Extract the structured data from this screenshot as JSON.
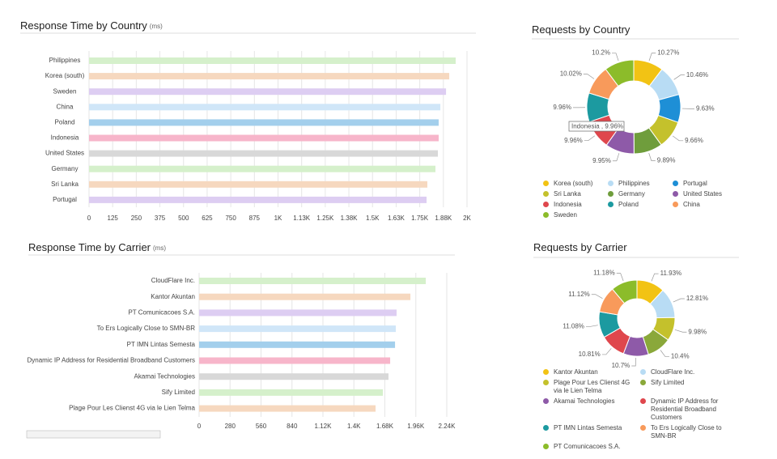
{
  "chart_data": [
    {
      "type": "bar",
      "orientation": "horizontal",
      "title": "Response Time by Country",
      "subtitle": "(ms)",
      "categories": [
        "Philippines",
        "Korea (south)",
        "Sweden",
        "China",
        "Poland",
        "Indonesia",
        "United States",
        "Germany",
        "Sri Lanka",
        "Portugal"
      ],
      "values": [
        1940,
        1906,
        1889,
        1859,
        1850,
        1850,
        1846,
        1833,
        1790,
        1786
      ],
      "colors": [
        "#d5f0cb",
        "#f6d8bf",
        "#ddcdf2",
        "#d0e6f8",
        "#a3cfec",
        "#f7b5ca",
        "#d8d8d8",
        "#d5f0cb",
        "#f6d8bf",
        "#ddcdf2"
      ],
      "xlim": [
        0,
        2000
      ],
      "xticks": [
        0,
        125,
        250,
        375,
        500,
        625,
        750,
        875,
        {
          "value": 1000,
          "label": "1K"
        },
        {
          "value": 1125,
          "label": "1.13K"
        },
        {
          "value": 1250,
          "label": "1.25K"
        },
        {
          "value": 1375,
          "label": "1.38K"
        },
        {
          "value": 1500,
          "label": "1.5K"
        },
        {
          "value": 1625,
          "label": "1.63K"
        },
        {
          "value": 1750,
          "label": "1.75K"
        },
        {
          "value": 1875,
          "label": "1.88K"
        },
        {
          "value": 2000,
          "label": "2K"
        }
      ],
      "grid": true
    },
    {
      "type": "bar",
      "orientation": "horizontal",
      "title": "Response Time by Carrier",
      "subtitle": "(ms)",
      "categories": [
        "CloudFlare Inc.",
        "Kantor Akuntan",
        "PT Comunicacoes S.A.",
        "To Ers Logically Close to SMN-BR",
        "PT IMN Lintas Semesta",
        "Dynamic IP Address for Residential Broadband Customers",
        "Akamai Technologies",
        "Sify Limited",
        "Plage Pour Les Clienst 4G via le Lien Telma"
      ],
      "values": [
        2050,
        1911,
        1786,
        1779,
        1772,
        1728,
        1713,
        1662,
        1596
      ],
      "colors": [
        "#d5f0cb",
        "#f6d8bf",
        "#ddcdf2",
        "#d0e6f8",
        "#a3cfec",
        "#f7b5ca",
        "#d8d8d8",
        "#d5f0cb",
        "#f6d8bf"
      ],
      "xlim": [
        0,
        2240
      ],
      "xticks": [
        0,
        280,
        560,
        840,
        {
          "value": 1120,
          "label": "1.12K"
        },
        {
          "value": 1400,
          "label": "1.4K"
        },
        {
          "value": 1680,
          "label": "1.68K"
        },
        {
          "value": 1960,
          "label": "1.96K"
        },
        {
          "value": 2240,
          "label": "2.24K"
        }
      ],
      "grid": true
    },
    {
      "type": "pie",
      "donut": true,
      "title": "Requests by Country",
      "categories": [
        "Korea (south)",
        "Philippines",
        "Portugal",
        "Sri Lanka",
        "Germany",
        "United States",
        "Indonesia",
        "Poland",
        "China",
        "Sweden"
      ],
      "values": [
        10.27,
        10.46,
        9.63,
        9.66,
        9.89,
        9.95,
        9.96,
        9.96,
        10.02,
        10.2
      ],
      "value_labels": [
        "10.27%",
        "10.46%",
        "9.63%",
        "9.66%",
        "9.89%",
        "9.95%",
        "9.96%",
        "9.96%",
        "10.02%",
        "10.2%"
      ],
      "colors": [
        "#f2c314",
        "#b8dcf4",
        "#1e8fd6",
        "#c4c12c",
        "#6f9d3c",
        "#8e5aa8",
        "#df474d",
        "#1c9aa0",
        "#f89a5b",
        "#8cbc2a"
      ],
      "annotation": "Indonesia , 9.96%",
      "legend_columns": 3
    },
    {
      "type": "pie",
      "donut": true,
      "title": "Requests by Carrier",
      "categories": [
        "Kantor Akuntan",
        "CloudFlare Inc.",
        "Plage Pour Les Clienst 4G via le Lien Telma",
        "Sify Limited",
        "Akamai Technologies",
        "Dynamic IP Address for Residential Broadband Customers",
        "PT IMN Lintas Semesta",
        "To Ers Logically Close to SMN-BR",
        "PT Comunicacoes S.A."
      ],
      "values": [
        11.93,
        12.81,
        9.98,
        10.4,
        10.7,
        10.81,
        11.08,
        11.12,
        11.18
      ],
      "value_labels": [
        "11.93%",
        "12.81%",
        "9.98%",
        "10.4%",
        "10.7%",
        "10.81%",
        "11.08%",
        "11.12%",
        "11.18%"
      ],
      "colors": [
        "#f2c314",
        "#b8dcf4",
        "#c4c12c",
        "#8aa83a",
        "#8e5aa8",
        "#df474d",
        "#1c9aa0",
        "#f89a5b",
        "#8cbc2a"
      ],
      "legend_columns": 2
    }
  ]
}
